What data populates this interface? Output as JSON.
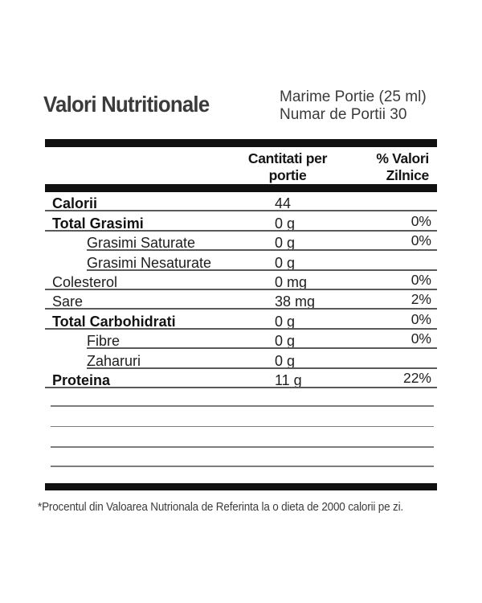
{
  "header": {
    "title": "Valori Nutritionale",
    "serving_size": "Marime Portie (25 ml)",
    "servings_per_container": "Numar de Portii 30"
  },
  "table": {
    "amount_header_line1": "Cantitati per",
    "amount_header_line2": "portie",
    "percent_header_line1": "% Valori",
    "percent_header_line2": "Zilnice",
    "rows": [
      {
        "label": "Calorii",
        "amount": "44",
        "daily_value": "",
        "bold": true,
        "indent": false
      },
      {
        "label": "Total Grasimi",
        "amount": "0 g",
        "daily_value": "0%",
        "bold": true,
        "indent": false
      },
      {
        "label": "Grasimi Saturate",
        "amount": "0 g",
        "daily_value": "0%",
        "bold": false,
        "indent": true
      },
      {
        "label": "Grasimi Nesaturate",
        "amount": "0 g",
        "daily_value": "",
        "bold": false,
        "indent": true
      },
      {
        "label": "Colesterol",
        "amount": "0 mg",
        "daily_value": "0%",
        "bold": false,
        "indent": false
      },
      {
        "label": "Sare",
        "amount": "38 mg",
        "daily_value": "2%",
        "bold": false,
        "indent": false
      },
      {
        "label": "Total Carbohidrati",
        "amount": "0 g",
        "daily_value": "0%",
        "bold": true,
        "indent": false
      },
      {
        "label": "Fibre",
        "amount": "0 g",
        "daily_value": "0%",
        "bold": false,
        "indent": true
      },
      {
        "label": "Zaharuri",
        "amount": "0 g",
        "daily_value": "",
        "bold": false,
        "indent": true
      },
      {
        "label": "Proteina",
        "amount": "11 g",
        "daily_value": "22%",
        "bold": true,
        "indent": false
      }
    ],
    "empty_rows": 4
  },
  "footer": {
    "note": "*Procentul din Valoarea Nutrionala de Referinta la o dieta de 2000 calorii pe zi."
  },
  "colors": {
    "text_dark": "#1e1e1e",
    "text_heading": "#3b3b3b",
    "bar_black": "#111111",
    "separator_gray": "#5a5a5a",
    "blank_line_gray": "#7d7d7d",
    "background": "#ffffff"
  }
}
